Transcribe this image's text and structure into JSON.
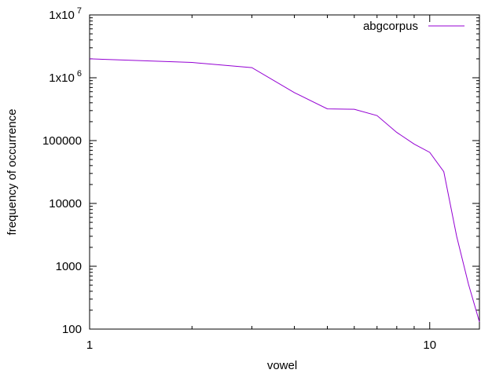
{
  "chart_data": {
    "type": "line",
    "title": "",
    "xlabel": "vowel",
    "ylabel": "frequency of occurrence",
    "xscale": "log",
    "yscale": "log",
    "xlim": [
      1,
      14
    ],
    "ylim": [
      100,
      10000000
    ],
    "x_ticks": [
      {
        "value": 1,
        "label": "1"
      },
      {
        "value": 10,
        "label": "10"
      }
    ],
    "y_ticks": [
      {
        "value": 100,
        "base": "100",
        "exp": ""
      },
      {
        "value": 1000,
        "base": "1000",
        "exp": ""
      },
      {
        "value": 10000,
        "base": "10000",
        "exp": ""
      },
      {
        "value": 100000,
        "base": "100000",
        "exp": ""
      },
      {
        "value": 1000000,
        "base": "1x10",
        "exp": "6"
      },
      {
        "value": 10000000,
        "base": "1x10",
        "exp": "7"
      }
    ],
    "grid": false,
    "legend_position": "top-right",
    "series": [
      {
        "name": "abgcorpus",
        "color": "#9400d3",
        "x": [
          1,
          2,
          3,
          4,
          5,
          6,
          7,
          8,
          9,
          10,
          11,
          12,
          13,
          14
        ],
        "y": [
          2000000,
          1750000,
          1450000,
          580000,
          320000,
          315000,
          250000,
          135000,
          88000,
          65000,
          32000,
          3000,
          520,
          130
        ]
      }
    ]
  }
}
